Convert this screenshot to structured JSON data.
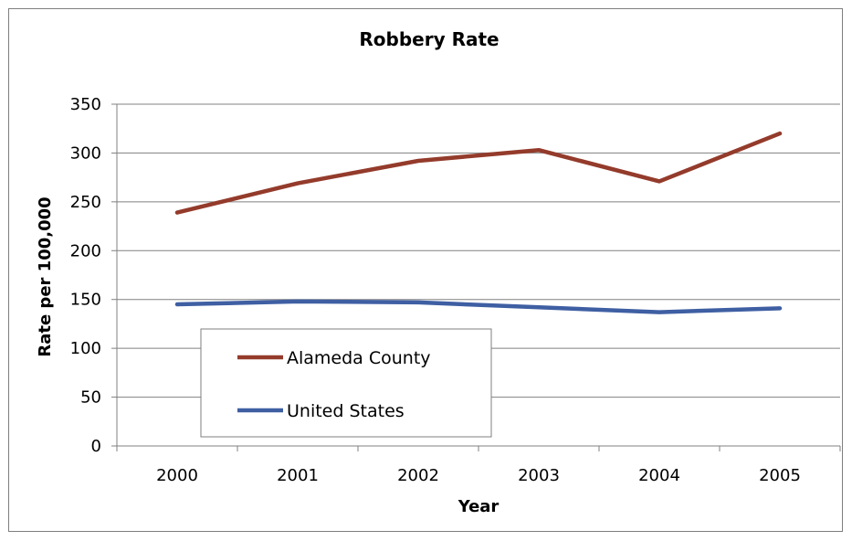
{
  "chart_data": {
    "type": "line",
    "title": "Robbery Rate",
    "xlabel": "Year",
    "ylabel": "Rate per 100,000",
    "categories": [
      "2000",
      "2001",
      "2002",
      "2003",
      "2004",
      "2005"
    ],
    "ylim": [
      0,
      350
    ],
    "yticks": [
      0,
      50,
      100,
      150,
      200,
      250,
      300,
      350
    ],
    "grid": true,
    "legend_position": "lower-left",
    "series": [
      {
        "name": "Alameda County",
        "color": "#943b2b",
        "values": [
          239,
          269,
          292,
          303,
          271,
          320
        ]
      },
      {
        "name": "United States",
        "color": "#3f5fa3",
        "values": [
          145,
          148,
          147,
          142,
          137,
          141
        ]
      }
    ]
  }
}
